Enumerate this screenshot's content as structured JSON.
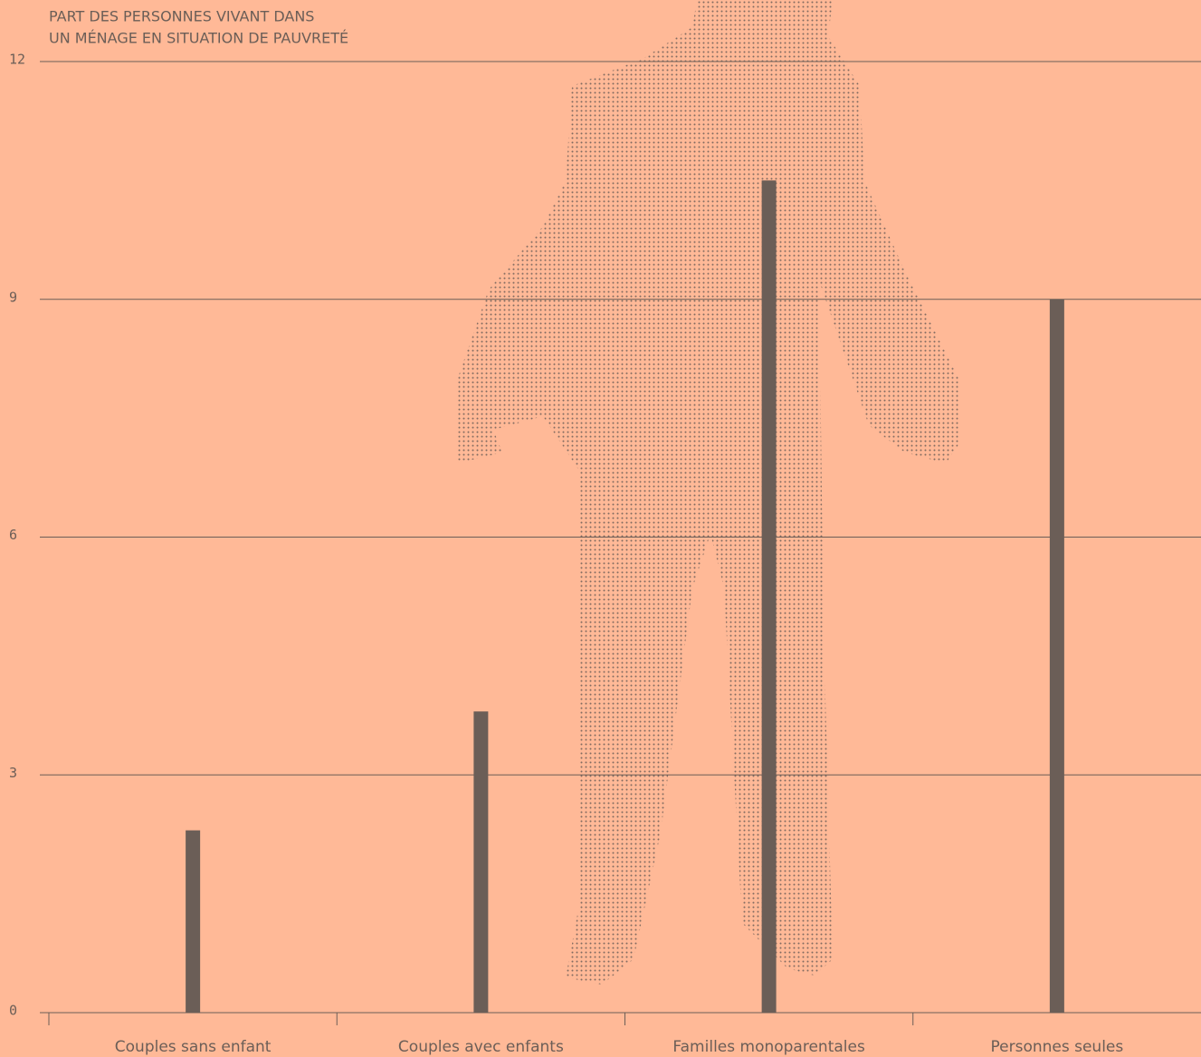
{
  "chart_data": {
    "type": "bar",
    "title_lines": [
      "PART DES PERSONNES VIVANT DANS",
      "UN MÉNAGE EN SITUATION DE PAUVRETÉ"
    ],
    "categories": [
      "Couples sans enfant",
      "Couples avec enfants",
      "Familles monoparentales",
      "Personnes seules"
    ],
    "values": [
      2.3,
      3.8,
      10.5,
      9.0
    ],
    "color": "#6b5e57",
    "ylim": [
      0,
      12
    ],
    "yticks": [
      0,
      3,
      6,
      9,
      12
    ],
    "grid": true
  }
}
